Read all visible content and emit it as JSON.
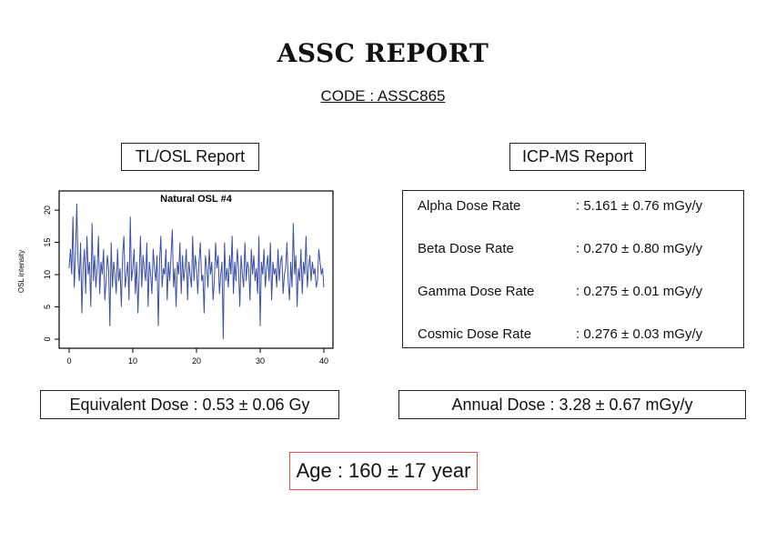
{
  "report": {
    "title": "ASSC REPORT",
    "code": "CODE : ASSC865"
  },
  "tl_osl": {
    "header": "TL/OSL Report",
    "equivalent_dose": "Equivalent Dose : 0.53 ± 0.06 Gy"
  },
  "icp_ms": {
    "header": "ICP-MS Report",
    "rows": [
      {
        "label": "Alpha Dose Rate",
        "value": ": 5.161 ± 0.76 mGy/y"
      },
      {
        "label": "Beta Dose Rate",
        "value": ": 0.270 ± 0.80 mGy/y"
      },
      {
        "label": "Gamma Dose Rate",
        "value": ": 0.275 ± 0.01 mGy/y"
      },
      {
        "label": "Cosmic Dose Rate",
        "value": ": 0.276 ± 0.03 mGy/y"
      }
    ],
    "annual_dose": "Annual Dose : 3.28 ± 0.67 mGy/y"
  },
  "age": "Age : 160 ± 17 year",
  "colors": {
    "series": "#3a4fa8",
    "age_border": "#d9534f"
  },
  "chart_data": {
    "type": "line",
    "title": "Natural OSL #4",
    "xlabel": "",
    "ylabel": "OSL intensity",
    "xlim": [
      0,
      40
    ],
    "ylim": [
      0,
      21
    ],
    "xticks": [
      0,
      10,
      20,
      30,
      40
    ],
    "yticks": [
      0,
      5,
      10,
      15,
      20
    ],
    "x": [
      0,
      0.2,
      0.4,
      0.6,
      0.8,
      1,
      1.2,
      1.4,
      1.6,
      1.8,
      2,
      2.2,
      2.4,
      2.6,
      2.8,
      3,
      3.2,
      3.4,
      3.6,
      3.8,
      4,
      4.2,
      4.4,
      4.6,
      4.8,
      5,
      5.2,
      5.4,
      5.6,
      5.8,
      6,
      6.2,
      6.4,
      6.6,
      6.8,
      7,
      7.2,
      7.4,
      7.6,
      7.8,
      8,
      8.2,
      8.4,
      8.6,
      8.8,
      9,
      9.2,
      9.4,
      9.6,
      9.8,
      10,
      10.2,
      10.4,
      10.6,
      10.8,
      11,
      11.2,
      11.4,
      11.6,
      11.8,
      12,
      12.2,
      12.4,
      12.6,
      12.8,
      13,
      13.2,
      13.4,
      13.6,
      13.8,
      14,
      14.2,
      14.4,
      14.6,
      14.8,
      15,
      15.2,
      15.4,
      15.6,
      15.8,
      16,
      16.2,
      16.4,
      16.6,
      16.8,
      17,
      17.2,
      17.4,
      17.6,
      17.8,
      18,
      18.2,
      18.4,
      18.6,
      18.8,
      19,
      19.2,
      19.4,
      19.6,
      19.8,
      20,
      20.2,
      20.4,
      20.6,
      20.8,
      21,
      21.2,
      21.4,
      21.6,
      21.8,
      22,
      22.2,
      22.4,
      22.6,
      22.8,
      23,
      23.2,
      23.4,
      23.6,
      23.8,
      24,
      24.2,
      24.4,
      24.6,
      24.8,
      25,
      25.2,
      25.4,
      25.6,
      25.8,
      26,
      26.2,
      26.4,
      26.6,
      26.8,
      27,
      27.2,
      27.4,
      27.6,
      27.8,
      28,
      28.2,
      28.4,
      28.6,
      28.8,
      29,
      29.2,
      29.4,
      29.6,
      29.8,
      30,
      30.2,
      30.4,
      30.6,
      30.8,
      31,
      31.2,
      31.4,
      31.6,
      31.8,
      32,
      32.2,
      32.4,
      32.6,
      32.8,
      33,
      33.2,
      33.4,
      33.6,
      33.8,
      34,
      34.2,
      34.4,
      34.6,
      34.8,
      35,
      35.2,
      35.4,
      35.6,
      35.8,
      36,
      36.2,
      36.4,
      36.6,
      36.8,
      37,
      37.2,
      37.4,
      37.6,
      37.8,
      38,
      38.2,
      38.4,
      38.6,
      38.8,
      39,
      39.2,
      39.4,
      39.6,
      39.8,
      40
    ],
    "y": [
      11,
      14,
      10,
      19,
      8,
      13,
      21,
      12,
      9,
      15,
      4,
      11,
      14,
      7,
      16,
      10,
      12,
      5,
      18,
      9,
      13,
      8,
      11,
      16,
      7,
      12,
      10,
      14,
      6,
      9,
      13,
      11,
      2,
      15,
      8,
      12,
      10,
      7,
      14,
      9,
      11,
      5,
      13,
      16,
      8,
      10,
      12,
      6,
      19,
      9,
      11,
      14,
      7,
      12,
      4,
      10,
      16,
      8,
      13,
      11,
      9,
      15,
      5,
      12,
      10,
      7,
      14,
      11,
      9,
      13,
      2,
      12,
      16,
      8,
      11,
      10,
      14,
      6,
      12,
      9,
      13,
      17,
      8,
      11,
      5,
      12,
      10,
      15,
      7,
      13,
      9,
      11,
      14,
      6,
      12,
      10,
      8,
      16,
      9,
      13,
      11,
      7,
      12,
      15,
      9,
      10,
      4,
      13,
      11,
      8,
      14,
      10,
      12,
      6,
      9,
      15,
      11,
      13,
      7,
      10,
      12,
      0,
      15,
      9,
      11,
      8,
      13,
      10,
      16,
      7,
      12,
      9,
      14,
      11,
      5,
      13,
      10,
      8,
      15,
      9,
      12,
      11,
      6,
      14,
      10,
      13,
      9,
      11,
      7,
      16,
      2,
      12,
      10,
      14,
      8,
      11,
      13,
      9,
      15,
      6,
      12,
      10,
      11,
      8,
      14,
      9,
      12,
      13,
      7,
      10,
      11,
      15,
      9,
      6,
      12,
      8,
      18,
      10,
      13,
      5,
      11,
      9,
      14,
      7,
      12,
      10,
      16,
      8,
      11,
      13,
      9,
      12,
      10,
      11,
      8,
      9,
      14,
      12,
      10,
      11,
      8
    ]
  }
}
